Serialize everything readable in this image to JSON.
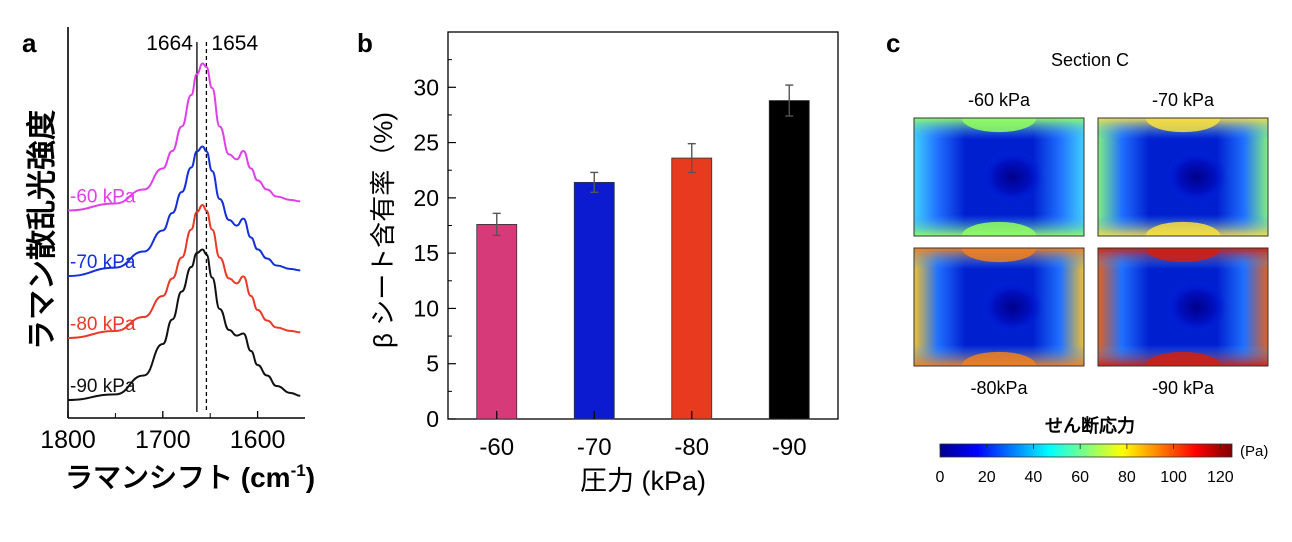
{
  "panel_labels": {
    "a": "a",
    "b": "b",
    "c": "c"
  },
  "chart_data": [
    {
      "type": "line",
      "panel": "a",
      "ylabel": "ラマン散乱光強度",
      "xlabel_main": "ラマンシフト (cm",
      "xlabel_sup": "-1",
      "xlabel_end": ")",
      "x_ticks": [
        "1800",
        "1700",
        "1600"
      ],
      "xlim": [
        1800,
        1550
      ],
      "x_reversed": true,
      "ref_lines": [
        {
          "value": 1664,
          "label": "1664",
          "style": "solid"
        },
        {
          "value": 1654,
          "label": "1654",
          "style": "dashed"
        }
      ],
      "series": [
        {
          "name": "-60 kPa",
          "color": "#e040e8",
          "offset": 3,
          "x": [
            1800,
            1750,
            1720,
            1700,
            1690,
            1680,
            1670,
            1664,
            1658,
            1654,
            1648,
            1640,
            1630,
            1622,
            1615,
            1607,
            1600,
            1590,
            1580,
            1565,
            1555
          ],
          "y": [
            0.05,
            0.15,
            0.35,
            0.65,
            0.9,
            1.25,
            1.7,
            2.0,
            2.15,
            2.1,
            1.8,
            1.25,
            0.85,
            0.78,
            0.9,
            0.65,
            0.48,
            0.35,
            0.25,
            0.2,
            0.18
          ]
        },
        {
          "name": "-70 kPa",
          "color": "#1530d8",
          "offset": 2,
          "x": [
            1800,
            1750,
            1720,
            1700,
            1690,
            1680,
            1670,
            1664,
            1658,
            1654,
            1648,
            1640,
            1630,
            1622,
            1615,
            1607,
            1600,
            1590,
            1580,
            1565,
            1555
          ],
          "y": [
            0.0,
            0.12,
            0.35,
            0.65,
            0.9,
            1.2,
            1.55,
            1.78,
            1.85,
            1.78,
            1.5,
            1.1,
            0.8,
            0.72,
            0.82,
            0.55,
            0.38,
            0.25,
            0.15,
            0.1,
            0.08
          ]
        },
        {
          "name": "-80 kPa",
          "color": "#e83a28",
          "offset": 1,
          "x": [
            1800,
            1750,
            1720,
            1700,
            1690,
            1680,
            1670,
            1664,
            1658,
            1654,
            1648,
            1640,
            1630,
            1622,
            1615,
            1607,
            1600,
            1590,
            1580,
            1565,
            1555
          ],
          "y": [
            0.0,
            0.1,
            0.3,
            0.6,
            0.85,
            1.15,
            1.55,
            1.8,
            1.9,
            1.82,
            1.55,
            1.15,
            0.85,
            0.78,
            0.88,
            0.6,
            0.4,
            0.25,
            0.15,
            0.1,
            0.08
          ]
        },
        {
          "name": "-90 kPa",
          "color": "#111111",
          "offset": 0,
          "x": [
            1800,
            1750,
            1720,
            1700,
            1690,
            1680,
            1670,
            1664,
            1658,
            1654,
            1648,
            1640,
            1630,
            1622,
            1615,
            1607,
            1600,
            1590,
            1580,
            1565,
            1555
          ],
          "y": [
            0.0,
            0.08,
            0.35,
            0.8,
            1.15,
            1.55,
            1.9,
            2.1,
            2.15,
            2.08,
            1.75,
            1.3,
            1.0,
            0.92,
            0.95,
            0.7,
            0.5,
            0.35,
            0.2,
            0.1,
            0.06
          ]
        }
      ]
    },
    {
      "type": "bar",
      "panel": "b",
      "categories": [
        "-60",
        "-70",
        "-80",
        "-90"
      ],
      "values": [
        17.6,
        21.4,
        23.6,
        28.8
      ],
      "errors": [
        1.0,
        0.9,
        1.3,
        1.4
      ],
      "colors": [
        "#d63a78",
        "#0c1bd0",
        "#e83a1e",
        "#000000"
      ],
      "ylim": [
        0,
        35
      ],
      "y_ticks": [
        0,
        5,
        10,
        15,
        20,
        25,
        30
      ],
      "ylabel": "β シート含有率（%)",
      "xlabel": "圧力 (kPa)"
    },
    {
      "type": "heatmap",
      "panel": "c",
      "title": "Section C",
      "maps": [
        {
          "label": "-60 kPa",
          "level": 0.55
        },
        {
          "label": "-70 kPa",
          "level": 0.72
        },
        {
          "label": "-80kPa",
          "level": 0.85
        },
        {
          "label": "-90 kPa",
          "level": 1.0
        }
      ],
      "colorbar": {
        "title": "せん断応力",
        "unit": "(Pa)",
        "range": [
          0,
          125
        ],
        "ticks": [
          0,
          20,
          40,
          60,
          80,
          100,
          120
        ],
        "colors": [
          "#00008f",
          "#0000ff",
          "#0080ff",
          "#00ffff",
          "#80ff80",
          "#ffff00",
          "#ff8000",
          "#ff0000",
          "#800000"
        ]
      }
    }
  ]
}
